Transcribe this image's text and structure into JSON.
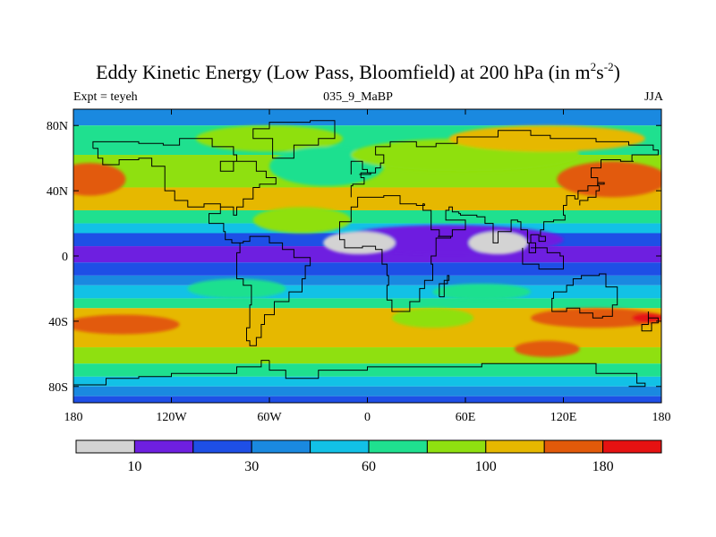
{
  "chart_data": {
    "type": "heatmap",
    "title_main": "Eddy Kinetic Energy (Low Pass, Bloomfield) at 200 hPa (in m",
    "title_sup1": "2",
    "title_mid": "s",
    "title_sup2": "-2",
    "title_end": ")",
    "subtitle_left": "Expt = teyeh",
    "subtitle_center": "035_9_MaBP",
    "subtitle_right": "JJA",
    "x_axis": {
      "range": [
        -180,
        180
      ],
      "ticks": [
        {
          "value": -180,
          "label": "180"
        },
        {
          "value": -120,
          "label": "120W"
        },
        {
          "value": -60,
          "label": "60W"
        },
        {
          "value": 0,
          "label": "0"
        },
        {
          "value": 60,
          "label": "60E"
        },
        {
          "value": 120,
          "label": "120E"
        },
        {
          "value": 180,
          "label": "180"
        }
      ]
    },
    "y_axis": {
      "range": [
        -90,
        90
      ],
      "ticks": [
        {
          "value": 80,
          "label": "80N"
        },
        {
          "value": 40,
          "label": "40N"
        },
        {
          "value": 0,
          "label": "0"
        },
        {
          "value": -40,
          "label": "40S"
        },
        {
          "value": -80,
          "label": "80S"
        }
      ]
    },
    "colorbar": {
      "colors": [
        "#d3d3d3",
        "#6e1fe0",
        "#1e4fe6",
        "#1a89e0",
        "#12c1e6",
        "#1fe08f",
        "#8fe010",
        "#e6b800",
        "#e25a0a",
        "#e61212"
      ],
      "labels": [
        {
          "after_box": 1,
          "text": "10"
        },
        {
          "after_box": 3,
          "text": "30"
        },
        {
          "after_box": 5,
          "text": "60"
        },
        {
          "after_box": 7,
          "text": "100"
        },
        {
          "after_box": 9,
          "text": "180"
        }
      ]
    },
    "zonal_bands": [
      {
        "lat": [
          80,
          90
        ],
        "level": 3
      },
      {
        "lat": [
          62,
          80
        ],
        "level": 5
      },
      {
        "lat": [
          42,
          62
        ],
        "level": 6
      },
      {
        "lat": [
          28,
          42
        ],
        "level": 7
      },
      {
        "lat": [
          20,
          28
        ],
        "level": 5
      },
      {
        "lat": [
          14,
          20
        ],
        "level": 4
      },
      {
        "lat": [
          6,
          14
        ],
        "level": 2
      },
      {
        "lat": [
          -4,
          6
        ],
        "level": 1
      },
      {
        "lat": [
          -12,
          -4
        ],
        "level": 2
      },
      {
        "lat": [
          -18,
          -12
        ],
        "level": 3
      },
      {
        "lat": [
          -26,
          -18
        ],
        "level": 4
      },
      {
        "lat": [
          -32,
          -26
        ],
        "level": 5
      },
      {
        "lat": [
          -56,
          -32
        ],
        "level": 7
      },
      {
        "lat": [
          -66,
          -56
        ],
        "level": 6
      },
      {
        "lat": [
          -74,
          -66
        ],
        "level": 5
      },
      {
        "lat": [
          -80,
          -74
        ],
        "level": 4
      },
      {
        "lat": [
          -86,
          -80
        ],
        "level": 3
      },
      {
        "lat": [
          -90,
          -86
        ],
        "level": 2
      }
    ],
    "blobs": [
      {
        "lon": -170,
        "lat": 47,
        "rx": 22,
        "ry": 10,
        "level": 8
      },
      {
        "lon": 150,
        "lat": 47,
        "rx": 34,
        "ry": 11,
        "level": 8
      },
      {
        "lon": -60,
        "lat": 72,
        "rx": 45,
        "ry": 8,
        "level": 6
      },
      {
        "lon": -25,
        "lat": 55,
        "rx": 35,
        "ry": 12,
        "level": 5
      },
      {
        "lon": 60,
        "lat": 62,
        "rx": 70,
        "ry": 10,
        "level": 6
      },
      {
        "lon": 110,
        "lat": 72,
        "rx": 60,
        "ry": 8,
        "level": 7
      },
      {
        "lon": -40,
        "lat": 22,
        "rx": 30,
        "ry": 8,
        "level": 6
      },
      {
        "lon": 50,
        "lat": 10,
        "rx": 70,
        "ry": 9,
        "level": 1
      },
      {
        "lon": -5,
        "lat": 8,
        "rx": 22,
        "ry": 7,
        "level": 0
      },
      {
        "lon": 80,
        "lat": 8,
        "rx": 18,
        "ry": 7,
        "level": 0
      },
      {
        "lon": -150,
        "lat": -42,
        "rx": 35,
        "ry": 6,
        "level": 8
      },
      {
        "lon": 140,
        "lat": -38,
        "rx": 40,
        "ry": 6,
        "level": 8
      },
      {
        "lon": 172,
        "lat": -38,
        "rx": 10,
        "ry": 3,
        "level": 9
      },
      {
        "lon": 110,
        "lat": -57,
        "rx": 20,
        "ry": 5,
        "level": 8
      },
      {
        "lon": 40,
        "lat": -38,
        "rx": 25,
        "ry": 6,
        "level": 6
      },
      {
        "lon": -80,
        "lat": -20,
        "rx": 30,
        "ry": 6,
        "level": 5
      },
      {
        "lon": 70,
        "lat": -22,
        "rx": 30,
        "ry": 5,
        "level": 5
      }
    ]
  }
}
